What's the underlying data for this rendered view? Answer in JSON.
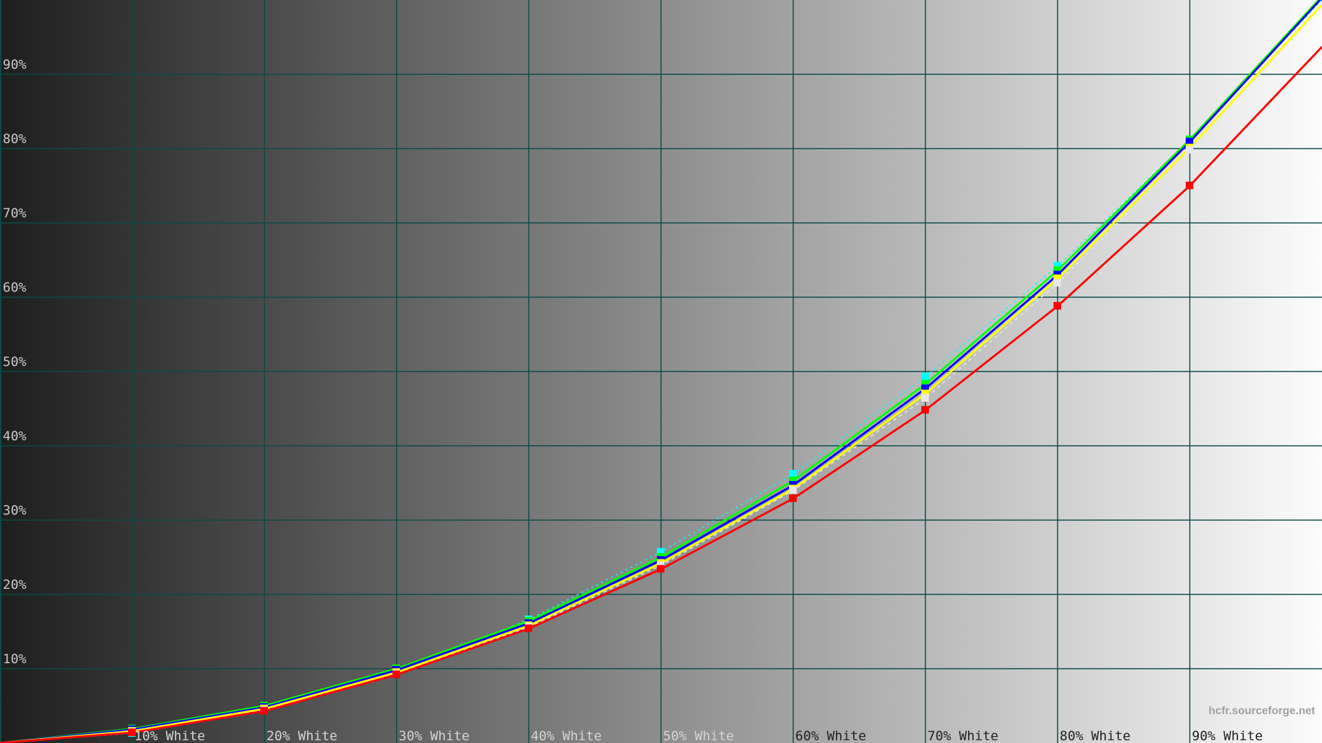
{
  "chart_data": {
    "type": "line",
    "title": "",
    "xlabel": "",
    "ylabel": "",
    "x": [
      0,
      10,
      20,
      30,
      40,
      50,
      60,
      70,
      80,
      90,
      100
    ],
    "xlim": [
      0,
      100
    ],
    "ylim": [
      0,
      100
    ],
    "grid": true,
    "x_tick_labels": [
      "10% White",
      "20% White",
      "30% White",
      "40% White",
      "50% White",
      "60% White",
      "70% White",
      "80% White",
      "90% White"
    ],
    "y_tick_labels": [
      "10%",
      "20%",
      "30%",
      "40%",
      "50%",
      "60%",
      "70%",
      "80%",
      "90%"
    ],
    "background": "grayscale gradient, black to white",
    "grid_color": "#0b4a46",
    "series": [
      {
        "color": "#00ffff",
        "style": "dotted",
        "values": [
          0,
          1.3,
          4.3,
          9.5,
          16.6,
          25.7,
          36.2,
          49.3,
          64.2,
          81.2,
          100
        ]
      },
      {
        "color": "#00ff00",
        "style": "solid",
        "values": [
          0,
          1.9,
          5.0,
          10.0,
          16.4,
          25.0,
          35.3,
          48.3,
          63.6,
          81.2,
          100.5
        ]
      },
      {
        "color": "#0000ff",
        "style": "solid",
        "values": [
          0,
          1.8,
          4.8,
          9.8,
          16.1,
          24.6,
          34.7,
          47.7,
          63.0,
          80.9,
          100.3
        ]
      },
      {
        "color": "#ffff00",
        "style": "solid",
        "values": [
          0,
          1.6,
          4.6,
          9.5,
          15.8,
          24.2,
          34.2,
          47.0,
          62.5,
          80.1,
          99.4
        ]
      },
      {
        "color": "#e8e8e8",
        "style": "dashed",
        "values": [
          0,
          1.5,
          4.4,
          9.3,
          15.6,
          23.9,
          34.0,
          46.4,
          61.9,
          79.8,
          99.0
        ]
      },
      {
        "color": "#ff0000",
        "style": "solid",
        "values": [
          0,
          1.4,
          4.3,
          9.2,
          15.4,
          23.4,
          32.9,
          44.8,
          58.8,
          75.0,
          93.7
        ]
      }
    ]
  },
  "watermark": "hcfr.sourceforge.net"
}
